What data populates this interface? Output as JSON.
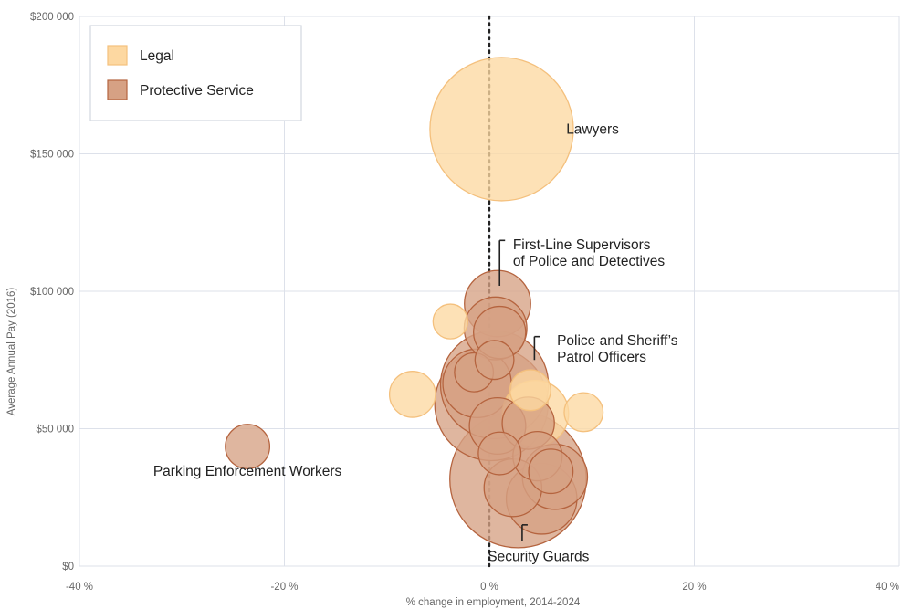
{
  "chart_data": {
    "type": "scatter",
    "title": "",
    "xlabel": "% change in employment, 2014-2024",
    "ylabel": "Average Annual Pay (2016)",
    "xlim": [
      -40,
      40
    ],
    "ylim": [
      0,
      200000
    ],
    "x_ticks": [
      -40,
      -20,
      0,
      20,
      40
    ],
    "x_tick_labels": [
      "-40 %",
      "-20 %",
      "0 %",
      "20 %",
      "40 %"
    ],
    "y_ticks": [
      0,
      50000,
      100000,
      150000,
      200000
    ],
    "y_tick_labels": [
      "$0",
      "$50 000",
      "$100 000",
      "$150 000",
      "$200 000"
    ],
    "reference_line_x": 0,
    "legend": {
      "placement": "top-left",
      "entries": [
        {
          "name": "Legal",
          "fill": "#fdd8a1",
          "stroke": "#f4c07d"
        },
        {
          "name": "Protective Service",
          "fill": "#d6a184",
          "stroke": "#b5643f"
        }
      ]
    },
    "series": [
      {
        "name": "Legal",
        "fill": "#fdd8a1",
        "stroke": "#f4c07d",
        "points": [
          {
            "x": 1.2,
            "y": 159000,
            "size": 13.6
          },
          {
            "x": 4.5,
            "y": 55500,
            "size": 2.9
          },
          {
            "x": -7.5,
            "y": 62500,
            "size": 1.4
          },
          {
            "x": 9.2,
            "y": 56000,
            "size": 1.0
          },
          {
            "x": -3.8,
            "y": 89000,
            "size": 0.8
          },
          {
            "x": 4.0,
            "y": 64000,
            "size": 1.1
          }
        ]
      },
      {
        "name": "Protective Service",
        "fill": "#d6a184",
        "stroke": "#b5643f",
        "points": [
          {
            "x": -23.6,
            "y": 43500,
            "size": 1.3
          },
          {
            "x": 2.8,
            "y": 31500,
            "size": 12.3
          },
          {
            "x": 0.5,
            "y": 66000,
            "size": 7.7
          },
          {
            "x": 0.2,
            "y": 59000,
            "size": 8.5
          },
          {
            "x": 0.8,
            "y": 95500,
            "size": 2.9
          },
          {
            "x": 0.6,
            "y": 86500,
            "size": 2.6
          },
          {
            "x": 1.0,
            "y": 85000,
            "size": 1.8
          },
          {
            "x": -1.2,
            "y": 66500,
            "size": 3.1
          },
          {
            "x": -1.5,
            "y": 70500,
            "size": 1.0
          },
          {
            "x": 0.5,
            "y": 75000,
            "size": 1.0
          },
          {
            "x": 0.8,
            "y": 51000,
            "size": 2.1
          },
          {
            "x": 3.8,
            "y": 52000,
            "size": 1.8
          },
          {
            "x": 1.0,
            "y": 41000,
            "size": 1.2
          },
          {
            "x": 4.7,
            "y": 40000,
            "size": 1.6
          },
          {
            "x": 2.3,
            "y": 28500,
            "size": 2.2
          },
          {
            "x": 5.1,
            "y": 24500,
            "size": 3.3
          },
          {
            "x": 6.4,
            "y": 32500,
            "size": 2.8
          },
          {
            "x": 6.0,
            "y": 34500,
            "size": 1.3
          }
        ]
      }
    ],
    "annotations": [
      {
        "lines": [
          "Lawyers"
        ],
        "x": 7.5,
        "y": 159000,
        "anchor": "start"
      },
      {
        "lines": [
          "First-Line Supervisors",
          "of Police and Detectives"
        ],
        "x": 2.3,
        "y": 117000,
        "anchor": "start",
        "leader": [
          [
            1.0,
            118500
          ],
          [
            1.0,
            102000
          ]
        ]
      },
      {
        "lines": [
          "Police and Sheriff’s",
          "Patrol Officers"
        ],
        "x": 6.6,
        "y": 82000,
        "anchor": "start",
        "leader": [
          [
            4.4,
            83500
          ],
          [
            4.4,
            75000
          ]
        ]
      },
      {
        "lines": [
          "Parking Enforcement Workers"
        ],
        "x": -23.6,
        "y": 34500,
        "anchor": "middle"
      },
      {
        "lines": [
          "Security Guards"
        ],
        "x": 4.8,
        "y": 3500,
        "anchor": "middle",
        "leader": [
          [
            3.2,
            15000
          ],
          [
            3.2,
            9000
          ]
        ]
      }
    ]
  }
}
